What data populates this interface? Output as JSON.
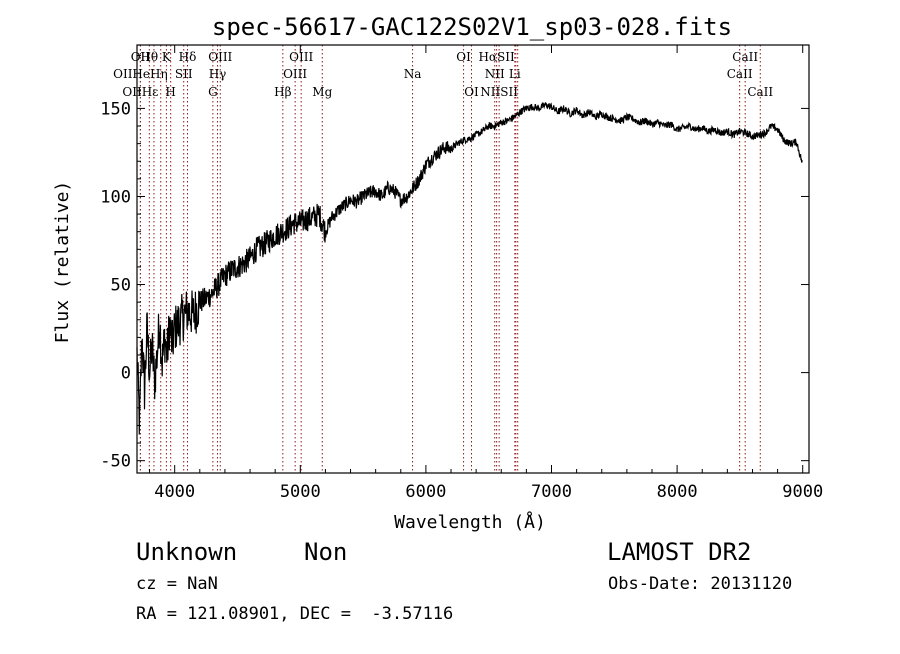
{
  "chart_data": {
    "type": "line",
    "title": "spec-56617-GAC122S02V1_sp03-028.fits",
    "xlabel": "Wavelength (Å)",
    "ylabel": "Flux (relative)",
    "xlim": [
      3700,
      9050
    ],
    "ylim": [
      -57,
      186
    ],
    "x_ticks": [
      4000,
      5000,
      6000,
      7000,
      8000,
      9000
    ],
    "y_ticks": [
      -50,
      0,
      50,
      100,
      150
    ],
    "grid": false,
    "series": [
      {
        "x": [
          3700,
          3720,
          3740,
          3760,
          3780,
          3800,
          3820,
          3840,
          3860,
          3880,
          3900,
          3920,
          3940,
          3960,
          3980,
          4000,
          4050,
          4100,
          4150,
          4200,
          4250,
          4300,
          4350,
          4400,
          4450,
          4500,
          4550,
          4600,
          4650,
          4700,
          4750,
          4800,
          4850,
          4900,
          4950,
          5000,
          5050,
          5100,
          5150,
          5200,
          5250,
          5300,
          5350,
          5400,
          5450,
          5500,
          5550,
          5600,
          5650,
          5700,
          5750,
          5800,
          5850,
          5900,
          5950,
          6000,
          6050,
          6100,
          6150,
          6200,
          6250,
          6300,
          6350,
          6400,
          6450,
          6500,
          6550,
          6600,
          6650,
          6700,
          6750,
          6800,
          6850,
          6900,
          6950,
          7000,
          7050,
          7100,
          7150,
          7200,
          7250,
          7300,
          7350,
          7400,
          7450,
          7500,
          7550,
          7600,
          7650,
          7700,
          7750,
          7800,
          7850,
          7900,
          7950,
          8000,
          8050,
          8100,
          8150,
          8200,
          8250,
          8300,
          8350,
          8400,
          8450,
          8500,
          8550,
          8600,
          8650,
          8700,
          8750,
          8800,
          8850,
          8900,
          8950,
          9000
        ],
        "y": [
          10,
          -30,
          20,
          -10,
          25,
          0,
          15,
          -5,
          10,
          30,
          5,
          20,
          10,
          28,
          15,
          25,
          30,
          35,
          33,
          40,
          42,
          45,
          50,
          55,
          58,
          60,
          62,
          65,
          70,
          72,
          75,
          78,
          80,
          82,
          85,
          85,
          87,
          88,
          90,
          80,
          88,
          92,
          95,
          98,
          97,
          100,
          102,
          103,
          100,
          105,
          103,
          98,
          100,
          105,
          110,
          118,
          122,
          125,
          128,
          127,
          130,
          132,
          133,
          135,
          137,
          140,
          140,
          142,
          143,
          145,
          148,
          150,
          151,
          150,
          152,
          151,
          148,
          150,
          147,
          149,
          146,
          148,
          145,
          147,
          145,
          144,
          143,
          145,
          144,
          142,
          143,
          141,
          142,
          140,
          141,
          138,
          139,
          140,
          138,
          139,
          137,
          138,
          136,
          137,
          135,
          137,
          136,
          134,
          135,
          136,
          140,
          138,
          132,
          130,
          131,
          118
        ]
      }
    ],
    "lines": [
      {
        "label": "Hθ",
        "x": 3798
      },
      {
        "label": "OII",
        "x": 3727
      },
      {
        "label": "OII",
        "x": 3727
      },
      {
        "label": "Hη",
        "x": 3835
      },
      {
        "label": "Hε",
        "x": 3889
      },
      {
        "label": "K",
        "x": 3934
      },
      {
        "label": "H",
        "x": 3968
      },
      {
        "label": "Hδ",
        "x": 4102
      },
      {
        "label": "SII",
        "x": 4072
      },
      {
        "label": "OIII",
        "x": 4363
      },
      {
        "label": "Hγ",
        "x": 4341
      },
      {
        "label": "G",
        "x": 4304
      },
      {
        "label": "Hβ",
        "x": 4861
      },
      {
        "label": "OIII",
        "x": 5007
      },
      {
        "label": "OIII",
        "x": 4959
      },
      {
        "label": "Mg",
        "x": 5175
      },
      {
        "label": "Na",
        "x": 5894
      },
      {
        "label": "OI",
        "x": 6300
      },
      {
        "label": "OI",
        "x": 6363
      },
      {
        "label": "Hα",
        "x": 6563
      },
      {
        "label": "NII",
        "x": 6548
      },
      {
        "label": "NII",
        "x": 6583
      },
      {
        "label": "SII",
        "x": 6716
      },
      {
        "label": "Li",
        "x": 6708
      },
      {
        "label": "SII",
        "x": 6731
      },
      {
        "label": "CaII",
        "x": 8542
      },
      {
        "label": "CaII",
        "x": 8498
      },
      {
        "label": "CaII",
        "x": 8662
      }
    ],
    "line_label_rows": [
      [
        {
          "t": "Hθ",
          "x": 3798
        },
        {
          "t": "OII",
          "x": 3727
        },
        {
          "t": "K",
          "x": 3934
        },
        {
          "t": "Hδ",
          "x": 4102
        },
        {
          "t": "OIII",
          "x": 4363
        },
        {
          "t": "OIII",
          "x": 5007
        },
        {
          "t": "OI",
          "x": 6300
        },
        {
          "t": "HαSII",
          "x": 6563
        },
        {
          "t": "CaII",
          "x": 8542
        }
      ],
      [
        {
          "t": "OIIHeHη",
          "x": 3727
        },
        {
          "t": "SII",
          "x": 4072
        },
        {
          "t": "Hγ",
          "x": 4341
        },
        {
          "t": "OIII",
          "x": 4959
        },
        {
          "t": "Na",
          "x": 5894
        },
        {
          "t": "NII",
          "x": 6548
        },
        {
          "t": "Li",
          "x": 6708
        },
        {
          "t": "CaII",
          "x": 8498
        }
      ],
      [
        {
          "t": "OIIHε",
          "x": 3727
        },
        {
          "t": "H",
          "x": 3968
        },
        {
          "t": "G",
          "x": 4304
        },
        {
          "t": "Hβ",
          "x": 4861
        },
        {
          "t": "Mg",
          "x": 5175
        },
        {
          "t": "OI",
          "x": 6363
        },
        {
          "t": "NIISII",
          "x": 6583
        },
        {
          "t": "CaII",
          "x": 8662
        }
      ]
    ]
  },
  "footer": {
    "object_class": "Unknown",
    "subclass": "Non",
    "survey": "LAMOST DR2",
    "cz": "cz = NaN",
    "obs_date": "Obs-Date: 20131120",
    "coords": "RA = 121.08901, DEC =  -3.57116"
  }
}
